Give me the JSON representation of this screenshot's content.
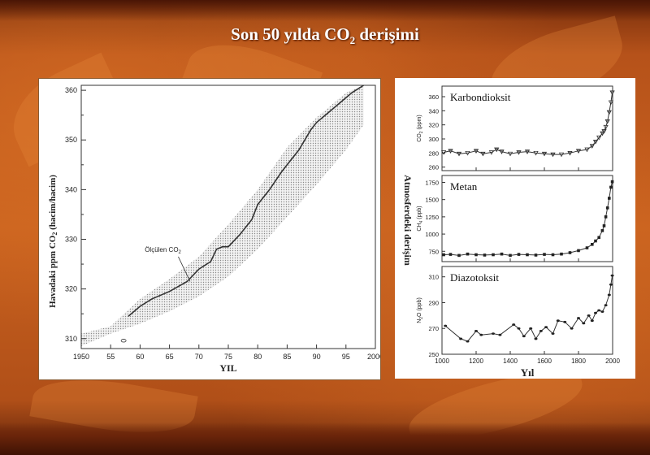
{
  "slide": {
    "title_pre": "Son 50 yılda CO",
    "title_sub": "2",
    "title_post": " derişimi"
  },
  "colors": {
    "background": "#c9621f",
    "panel": "#ffffff",
    "line": "#333333",
    "band": "#d0d0d0"
  },
  "chart_data": [
    {
      "type": "line",
      "xlabel": "YIL",
      "ylabel_pre": "Havadaki ppm CO",
      "ylabel_sub": "2",
      "ylabel_post": " (hacim/hacim)",
      "xlim": [
        1950,
        2000
      ],
      "ylim": [
        308,
        361
      ],
      "x_ticks": [
        "1950",
        "55",
        "60",
        "65",
        "70",
        "75",
        "80",
        "85",
        "90",
        "95",
        "2000"
      ],
      "y_ticks": [
        310,
        320,
        330,
        340,
        350,
        360
      ],
      "annotation_pre": "Ölçülen CO",
      "annotation_sub": "2",
      "series": [
        {
          "x": [
            1958,
            1960,
            1962,
            1965,
            1968,
            1970,
            1972,
            1973,
            1974,
            1975,
            1977,
            1979,
            1980,
            1982,
            1984,
            1985,
            1987,
            1989,
            1990,
            1992,
            1994,
            1996,
            1998
          ],
          "y": [
            314.5,
            316.5,
            318,
            319.5,
            321.5,
            324,
            325.5,
            328,
            328.5,
            328.5,
            331,
            334,
            337,
            340,
            343.5,
            345,
            348,
            352,
            353.5,
            355.5,
            357.5,
            359.5,
            361
          ]
        }
      ],
      "band_x": [
        1950,
        1955,
        1960,
        1965,
        1970,
        1975,
        1980,
        1985,
        1990,
        1995,
        1998
      ],
      "band_low": [
        308.5,
        311,
        313,
        315.5,
        318.5,
        322.5,
        328,
        334.5,
        341,
        348,
        353
      ],
      "band_high": [
        311,
        312.5,
        318,
        322,
        326.5,
        333,
        340,
        348.5,
        354.5,
        359.5,
        361
      ]
    },
    {
      "type": "scatter",
      "title": "Karbondioksit",
      "ylabel_pre": "CO",
      "ylabel_sub": "2",
      "ylabel_post": " (ppm)",
      "xlim": [
        1000,
        2000
      ],
      "ylim": [
        255,
        375
      ],
      "y_ticks": [
        260,
        280,
        300,
        320,
        340,
        360
      ],
      "x": [
        1010,
        1050,
        1100,
        1150,
        1200,
        1240,
        1290,
        1320,
        1350,
        1400,
        1450,
        1500,
        1550,
        1600,
        1650,
        1700,
        1750,
        1800,
        1850,
        1880,
        1900,
        1920,
        1940,
        1950,
        1960,
        1970,
        1980,
        1990,
        1998
      ],
      "y": [
        281,
        283,
        279,
        280,
        283,
        279,
        281,
        285,
        282,
        279,
        281,
        282,
        280,
        279,
        278,
        278,
        280,
        283,
        285,
        290,
        296,
        302,
        308,
        311,
        317,
        325,
        338,
        352,
        366
      ]
    },
    {
      "type": "scatter",
      "title": "Metan",
      "ylabel_pre": "CH",
      "ylabel_sub": "4",
      "ylabel_post": " (ppb)",
      "xlim": [
        1000,
        2000
      ],
      "ylim": [
        600,
        1850
      ],
      "y_ticks": [
        750,
        1000,
        1250,
        1500,
        1750
      ],
      "x": [
        1010,
        1050,
        1100,
        1150,
        1200,
        1250,
        1300,
        1350,
        1400,
        1450,
        1500,
        1550,
        1600,
        1650,
        1700,
        1750,
        1800,
        1850,
        1880,
        1900,
        1920,
        1940,
        1950,
        1960,
        1970,
        1980,
        1990,
        1998
      ],
      "y": [
        700,
        705,
        690,
        710,
        700,
        695,
        700,
        710,
        690,
        705,
        700,
        695,
        705,
        700,
        710,
        730,
        760,
        800,
        850,
        900,
        950,
        1050,
        1120,
        1250,
        1380,
        1520,
        1680,
        1760
      ]
    },
    {
      "type": "scatter",
      "title": "Diazotoksit",
      "ylabel_pre": "N",
      "ylabel_sub": "2",
      "ylabel_post": "O (ppb)",
      "xlabel": "Yıl",
      "side_label": "Atmosferdeki derişim",
      "xlim": [
        1000,
        2000
      ],
      "ylim": [
        250,
        318
      ],
      "y_ticks": [
        250,
        270,
        290,
        310
      ],
      "x_ticks": [
        "1000",
        "1200",
        "1400",
        "1600",
        "1800",
        "2000"
      ],
      "x": [
        1020,
        1110,
        1150,
        1200,
        1230,
        1300,
        1340,
        1420,
        1450,
        1480,
        1520,
        1550,
        1580,
        1610,
        1650,
        1680,
        1720,
        1760,
        1800,
        1830,
        1860,
        1880,
        1900,
        1920,
        1940,
        1960,
        1980,
        1990,
        1998
      ],
      "y": [
        272,
        262,
        260,
        268,
        265,
        266,
        265,
        273,
        270,
        264,
        270,
        262,
        268,
        271,
        266,
        276,
        275,
        270,
        278,
        274,
        280,
        276,
        282,
        284,
        283,
        288,
        296,
        304,
        311
      ]
    }
  ]
}
